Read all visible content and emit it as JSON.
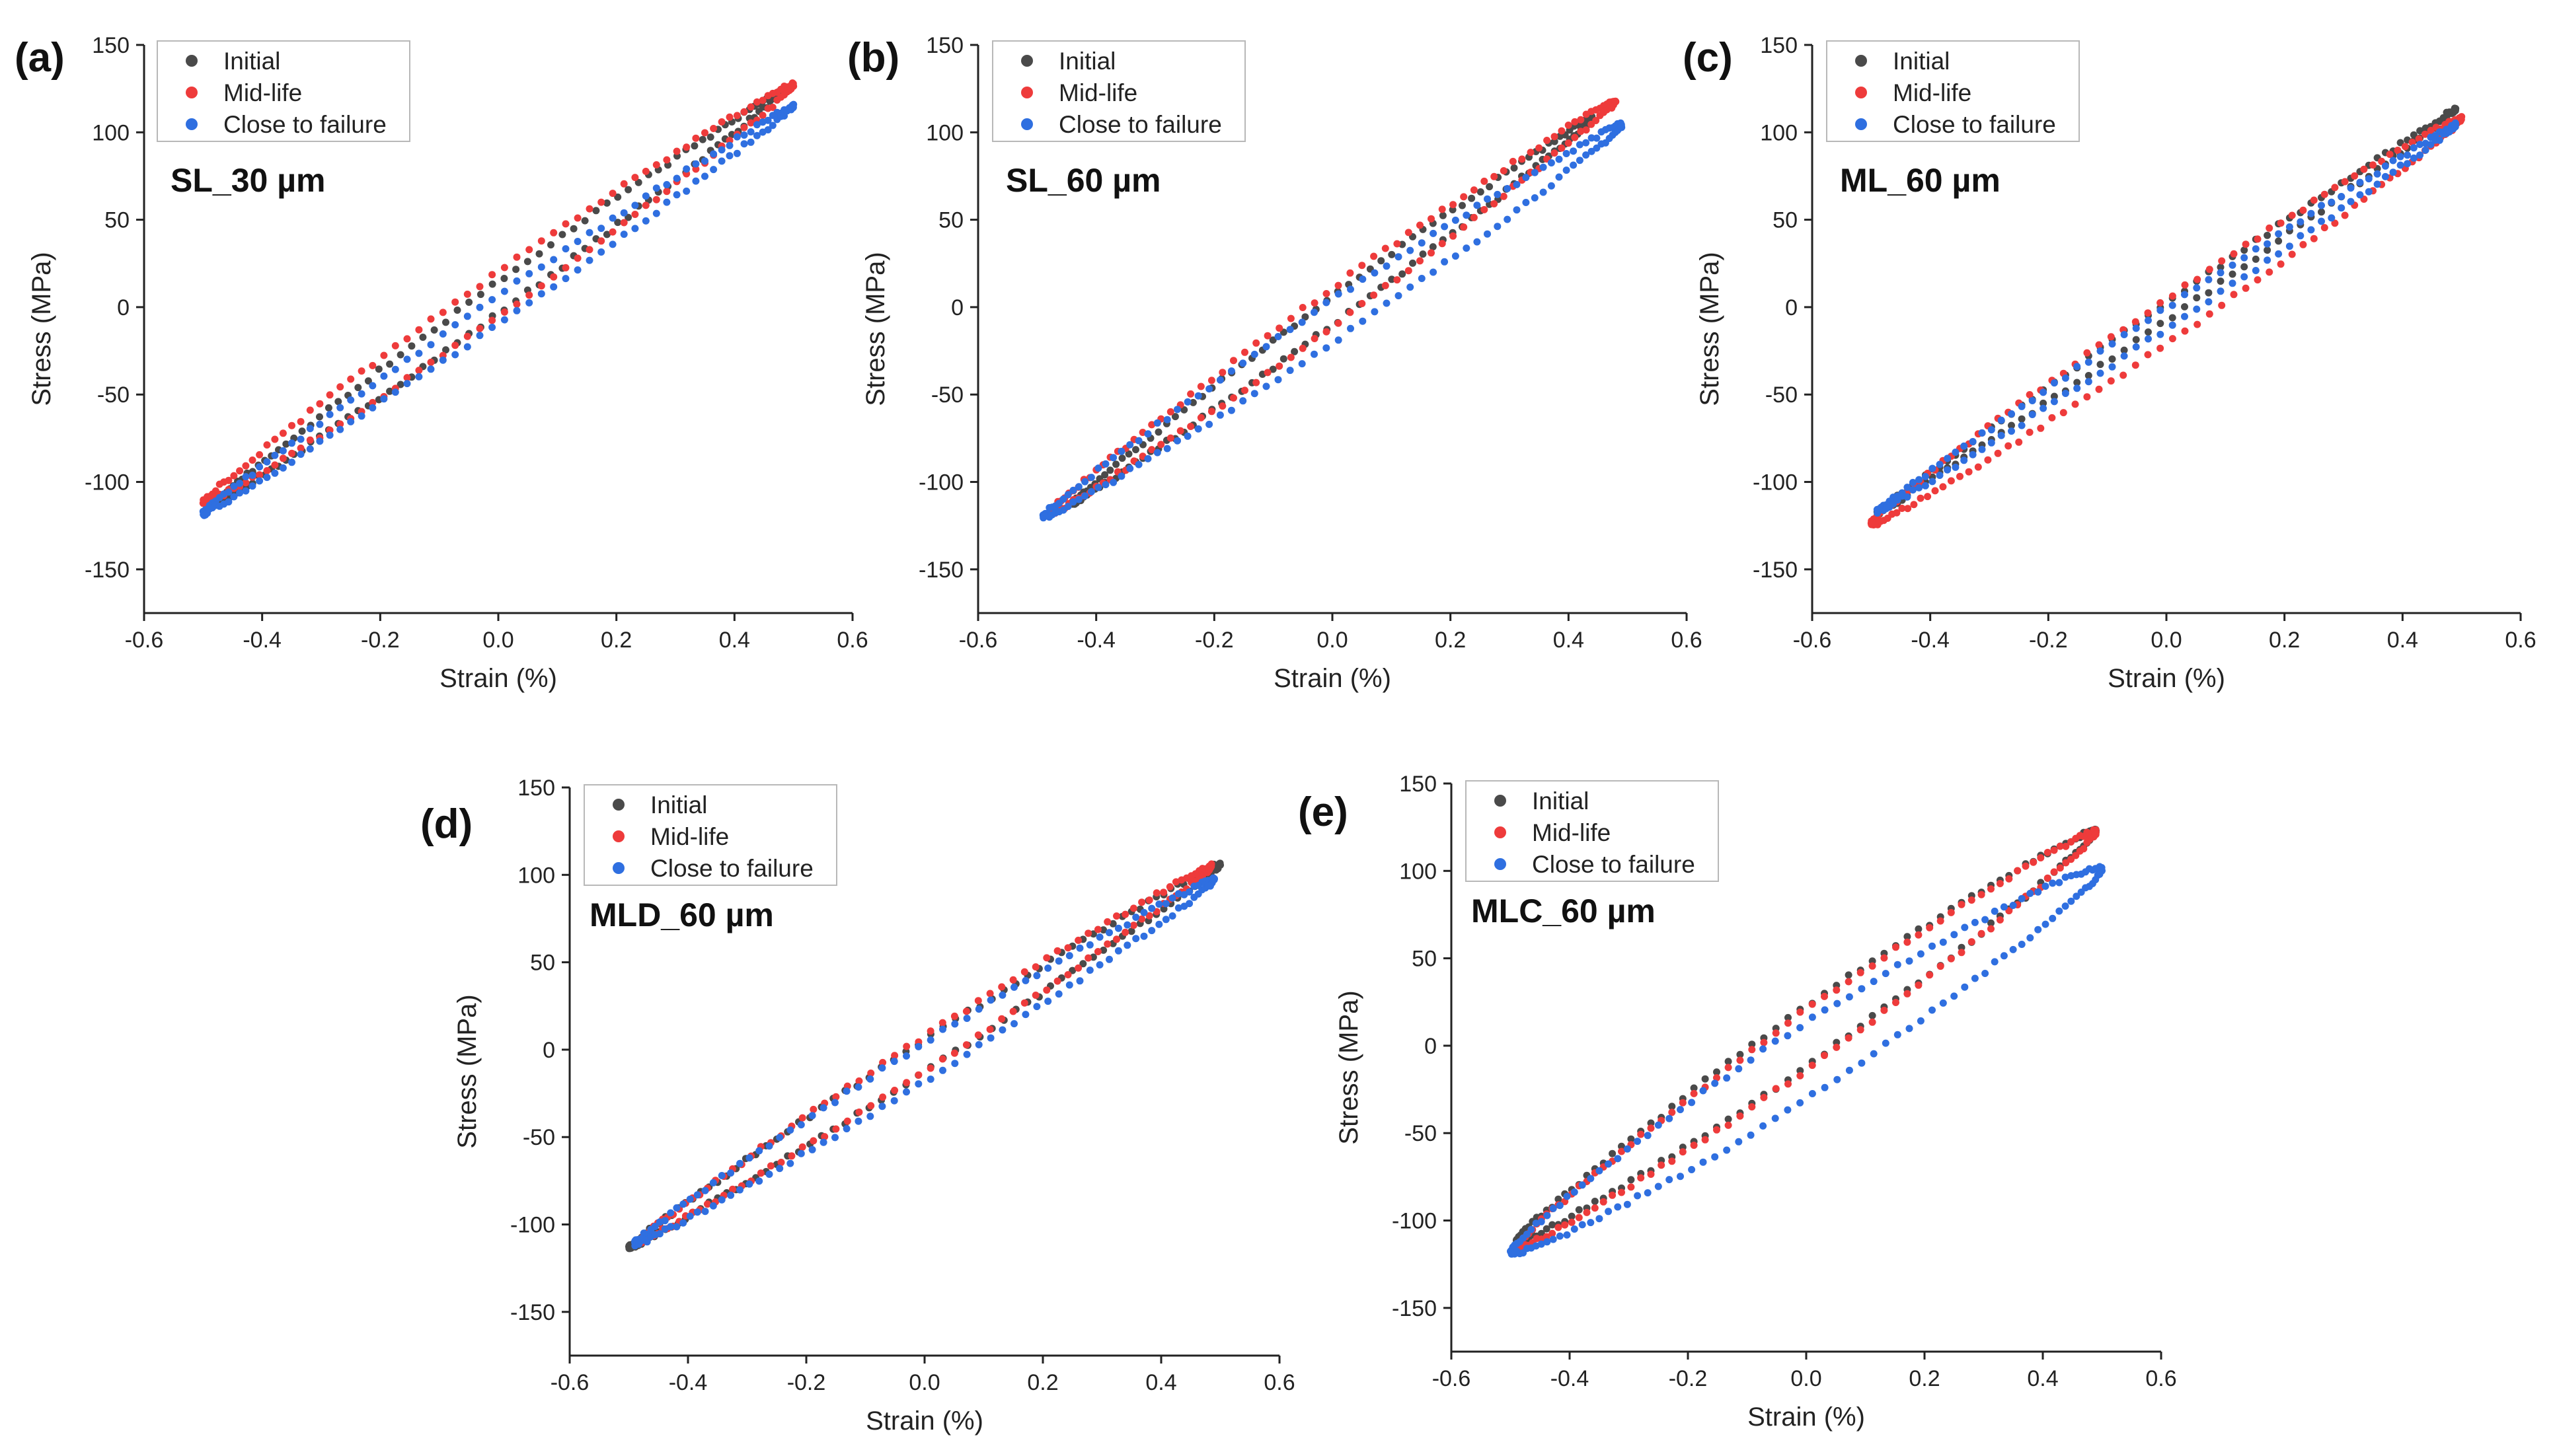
{
  "chart_data": [
    {
      "type": "scatter",
      "panel": "(a)",
      "title": "SL_30 µm",
      "xlabel": "Strain (%)",
      "ylabel": "Stress (MPa)",
      "xlim": [
        -0.6,
        0.6
      ],
      "ylim": [
        -175,
        150
      ],
      "xticks": [
        "-0.6",
        "-0.4",
        "-0.2",
        "0.0",
        "0.2",
        "0.4",
        "0.6"
      ],
      "yticks": [
        "-150",
        "-100",
        "-50",
        "0",
        "50",
        "100",
        "150"
      ],
      "legend": [
        "Initial",
        "Mid-life",
        "Close to failure"
      ],
      "series": [
        {
          "name": "Initial",
          "color": "#4a4a4a",
          "strain_amp": 0.475,
          "stress_max": 122,
          "stress_min": -111,
          "half_width": 9
        },
        {
          "name": "Mid-life",
          "color": "#ee3b3b",
          "strain_amp": 0.5,
          "stress_max": 127,
          "stress_min": -112,
          "half_width": 13
        },
        {
          "name": "Close to failure",
          "color": "#2f6fe0",
          "strain_amp": 0.5,
          "stress_max": 115,
          "stress_min": -118,
          "half_width": 8
        }
      ]
    },
    {
      "type": "scatter",
      "panel": "(b)",
      "title": "SL_60 µm",
      "xlabel": "Strain (%)",
      "ylabel": "Stress (MPa)",
      "xlim": [
        -0.6,
        0.6
      ],
      "ylim": [
        -175,
        150
      ],
      "xticks": [
        "-0.6",
        "-0.4",
        "-0.2",
        "0.0",
        "0.2",
        "0.4",
        "0.6"
      ],
      "yticks": [
        "-150",
        "-100",
        "-50",
        "0",
        "50",
        "100",
        "150"
      ],
      "legend": [
        "Initial",
        "Mid-life",
        "Close to failure"
      ],
      "series": [
        {
          "name": "Initial",
          "color": "#4a4a4a",
          "strain_amp": 0.44,
          "stress_max": 108,
          "stress_min": -112,
          "half_width": 8
        },
        {
          "name": "Mid-life",
          "color": "#ee3b3b",
          "strain_amp": 0.48,
          "stress_max": 118,
          "stress_min": -118,
          "half_width": 11
        },
        {
          "name": "Close to failure",
          "color": "#2f6fe0",
          "strain_amp": 0.49,
          "stress_max": 104,
          "stress_min": -120,
          "half_width": 12
        }
      ]
    },
    {
      "type": "scatter",
      "panel": "(c)",
      "title": "ML_60 µm",
      "xlabel": "Strain (%)",
      "ylabel": "Stress (MPa)",
      "xlim": [
        -0.6,
        0.6
      ],
      "ylim": [
        -175,
        150
      ],
      "xticks": [
        "-0.6",
        "-0.4",
        "-0.2",
        "0.0",
        "0.2",
        "0.4",
        "0.6"
      ],
      "yticks": [
        "-150",
        "-100",
        "-50",
        "0",
        "50",
        "100",
        "150"
      ],
      "legend": [
        "Initial",
        "Mid-life",
        "Close to failure"
      ],
      "series": [
        {
          "name": "Initial",
          "color": "#4a4a4a",
          "strain_amp": 0.49,
          "stress_max": 113,
          "stress_min": -118,
          "half_width": 5
        },
        {
          "name": "Mid-life",
          "color": "#ee3b3b",
          "strain_amp": 0.5,
          "stress_max": 108,
          "stress_min": -124,
          "half_width": 13
        },
        {
          "name": "Close to failure",
          "color": "#2f6fe0",
          "strain_amp": 0.49,
          "stress_max": 104,
          "stress_min": -117,
          "half_width": 6
        }
      ]
    },
    {
      "type": "scatter",
      "panel": "(d)",
      "title": "MLD_60 µm",
      "xlabel": "Strain (%)",
      "ylabel": "Stress (MPa)",
      "xlim": [
        -0.6,
        0.6
      ],
      "ylim": [
        -175,
        150
      ],
      "xticks": [
        "-0.6",
        "-0.4",
        "-0.2",
        "0.0",
        "0.2",
        "0.4",
        "0.6"
      ],
      "yticks": [
        "-150",
        "-100",
        "-50",
        "0",
        "50",
        "100",
        "150"
      ],
      "legend": [
        "Initial",
        "Mid-life",
        "Close to failure"
      ],
      "series": [
        {
          "name": "Initial",
          "color": "#4a4a4a",
          "strain_amp": 0.5,
          "stress_max": 106,
          "stress_min": -113,
          "half_width": 9
        },
        {
          "name": "Mid-life",
          "color": "#ee3b3b",
          "strain_amp": 0.485,
          "stress_max": 105,
          "stress_min": -110,
          "half_width": 10
        },
        {
          "name": "Close to failure",
          "color": "#2f6fe0",
          "strain_amp": 0.49,
          "stress_max": 97,
          "stress_min": -111,
          "half_width": 11
        }
      ]
    },
    {
      "type": "scatter",
      "panel": "(e)",
      "title": "MLC_60 µm",
      "xlabel": "Strain (%)",
      "ylabel": "Stress (MPa)",
      "xlim": [
        -0.6,
        0.6
      ],
      "ylim": [
        -175,
        150
      ],
      "xticks": [
        "-0.6",
        "-0.4",
        "-0.2",
        "0.0",
        "0.2",
        "0.4",
        "0.6"
      ],
      "yticks": [
        "-150",
        "-100",
        "-50",
        "0",
        "50",
        "100",
        "150"
      ],
      "legend": [
        "Initial",
        "Mid-life",
        "Close to failure"
      ],
      "series": [
        {
          "name": "Initial",
          "color": "#4a4a4a",
          "strain_amp": 0.49,
          "stress_max": 123,
          "stress_min": -112,
          "half_width": 17
        },
        {
          "name": "Mid-life",
          "color": "#ee3b3b",
          "strain_amp": 0.49,
          "stress_max": 122,
          "stress_min": -115,
          "half_width": 17
        },
        {
          "name": "Close to failure",
          "color": "#2f6fe0",
          "strain_amp": 0.5,
          "stress_max": 101,
          "stress_min": -118,
          "half_width": 22
        }
      ]
    }
  ]
}
